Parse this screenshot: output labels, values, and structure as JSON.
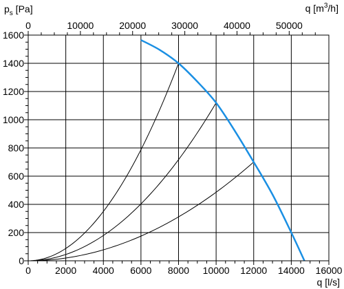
{
  "chart_data": {
    "type": "line",
    "ylabel": {
      "main": "p",
      "sub": "s",
      "rest": " [Pa]"
    },
    "xlabel_bottom": "q [l/s]",
    "xlabel_top": {
      "pre": "q [m",
      "sup": "3",
      "post": "/h]"
    },
    "x_bottom": {
      "min": 0,
      "max": 16000,
      "ticks": [
        0,
        2000,
        4000,
        6000,
        8000,
        10000,
        12000,
        14000,
        16000
      ],
      "tick_labels": [
        "0",
        "2000",
        "4000",
        "6000",
        "8000",
        "10000",
        "12000",
        "14000",
        "16000"
      ]
    },
    "x_top": {
      "ticks": [
        0,
        10000,
        20000,
        30000,
        40000,
        50000
      ],
      "tick_labels": [
        "0",
        "10000",
        "20000",
        "30000",
        "40000",
        "50000"
      ],
      "factor": 3.6
    },
    "y": {
      "min": 0,
      "max": 1600,
      "ticks": [
        0,
        200,
        400,
        600,
        800,
        1000,
        1200,
        1400,
        1600
      ],
      "tick_labels": [
        "0",
        "200",
        "400",
        "600",
        "800",
        "1000",
        "1200",
        "1400",
        "1600"
      ]
    },
    "grid": true,
    "colors": {
      "fan_curve": "#1a8fe3",
      "system_curves": "#000000",
      "grid": "#000000"
    },
    "fan_curve": {
      "x": [
        6000,
        7000,
        8000,
        9000,
        10000,
        11000,
        12000,
        13000,
        14000,
        14700
      ],
      "y": [
        1565,
        1495,
        1400,
        1270,
        1120,
        920,
        700,
        470,
        200,
        0
      ]
    },
    "system_curves": [
      {
        "x_end": 8000,
        "y_end": 1400
      },
      {
        "x_end": 10000,
        "y_end": 1120
      },
      {
        "x_end": 12000,
        "y_end": 700
      }
    ]
  }
}
